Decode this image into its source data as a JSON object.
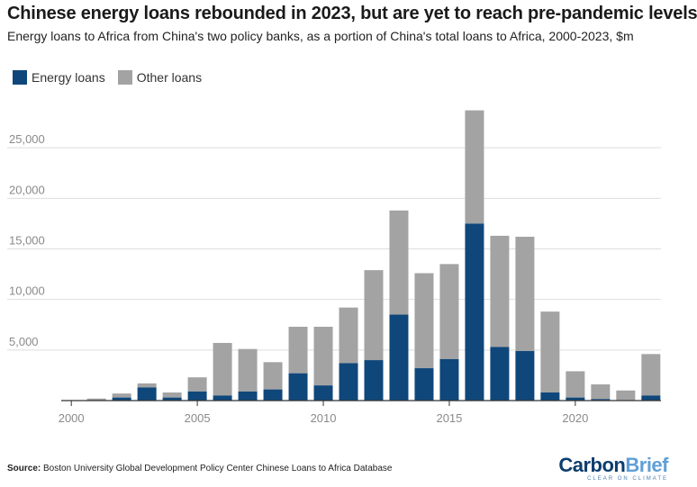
{
  "title": "Chinese energy loans rebounded in 2023, but are yet to reach pre-pandemic levels",
  "subtitle": "Energy loans to Africa from China's two policy banks, as a portion of China's total loans to Africa, 2000-2023, $m",
  "legend": {
    "energy_label": "Energy loans",
    "other_label": "Other loans"
  },
  "source": {
    "label": "Source:",
    "text": "Boston University Global Development Policy Center Chinese Loans to Africa Database"
  },
  "logo": {
    "carbon": "Carbon",
    "brief": "Brief",
    "tagline": "CLEAR ON CLIMATE"
  },
  "colors": {
    "energy": "#0f477b",
    "other": "#a3a3a3",
    "grid": "#dedede",
    "text": "#8a8a8a"
  },
  "chart_data": {
    "type": "bar",
    "stacked": true,
    "x": [
      2000,
      2001,
      2002,
      2003,
      2004,
      2005,
      2006,
      2007,
      2008,
      2009,
      2010,
      2011,
      2012,
      2013,
      2014,
      2015,
      2016,
      2017,
      2018,
      2019,
      2020,
      2021,
      2022,
      2023
    ],
    "series": [
      {
        "name": "Energy loans",
        "values": [
          0,
          50,
          300,
          1300,
          300,
          900,
          500,
          900,
          1100,
          2700,
          1500,
          3700,
          4000,
          8500,
          3200,
          4100,
          17500,
          5300,
          4900,
          800,
          300,
          150,
          0,
          500
        ]
      },
      {
        "name": "Other loans",
        "values": [
          50,
          150,
          400,
          400,
          500,
          1400,
          5200,
          4200,
          2700,
          4600,
          5800,
          5500,
          8900,
          10300,
          9400,
          9400,
          11200,
          11000,
          11300,
          8000,
          2600,
          1450,
          1000,
          4100
        ]
      }
    ],
    "xticks": [
      2000,
      2005,
      2010,
      2015,
      2020
    ],
    "yticks": [
      5000,
      10000,
      15000,
      20000,
      25000
    ],
    "ytick_labels": [
      "5,000",
      "10,000",
      "15,000",
      "20,000",
      "25,000"
    ],
    "xlim": [
      1999.6,
      2023.4
    ],
    "ylim": [
      0,
      30000
    ],
    "legend_position": "top-left",
    "grid": true
  }
}
